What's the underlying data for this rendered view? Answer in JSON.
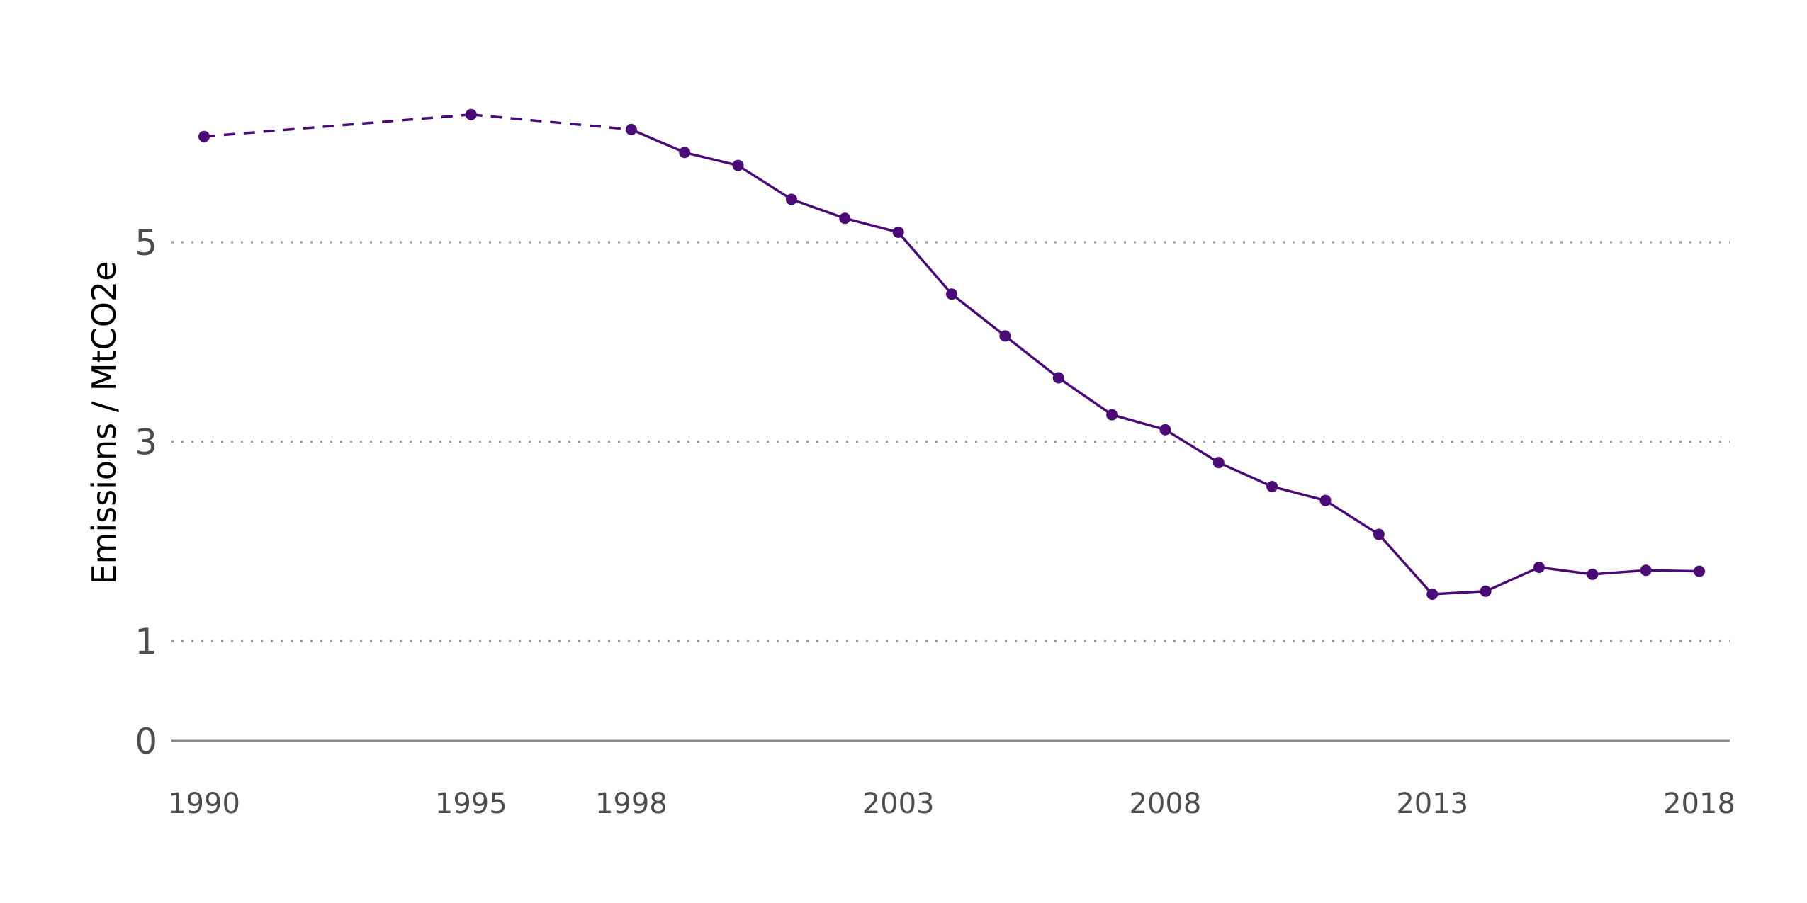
{
  "chart_data": {
    "type": "line",
    "title": "",
    "xlabel": "",
    "ylabel": "Emissions / MtCO2e",
    "xlim": [
      1990,
      2018
    ],
    "ylim": [
      0,
      6.5
    ],
    "x_ticks": [
      "1990",
      "1995",
      "1998",
      "2003",
      "2008",
      "2013",
      "2018"
    ],
    "y_ticks": [
      "0",
      "1",
      "3",
      "5"
    ],
    "grid": "horizontal dotted",
    "line_color": "#4b0b77",
    "series": [
      {
        "x": [
          1990,
          1995,
          1998,
          1999,
          2000,
          2001,
          2002,
          2003,
          2004,
          2005,
          2006,
          2007,
          2008,
          2009,
          2010,
          2011,
          2012,
          2013,
          2014,
          2015,
          2016,
          2017,
          2018
        ],
        "values": [
          6.06,
          6.28,
          6.13,
          5.9,
          5.77,
          5.43,
          5.24,
          5.1,
          4.48,
          4.06,
          3.64,
          3.27,
          3.12,
          2.79,
          2.55,
          2.41,
          2.07,
          1.47,
          1.5,
          1.74,
          1.67,
          1.71,
          1.7
        ],
        "dashed_until": 1998
      }
    ]
  }
}
